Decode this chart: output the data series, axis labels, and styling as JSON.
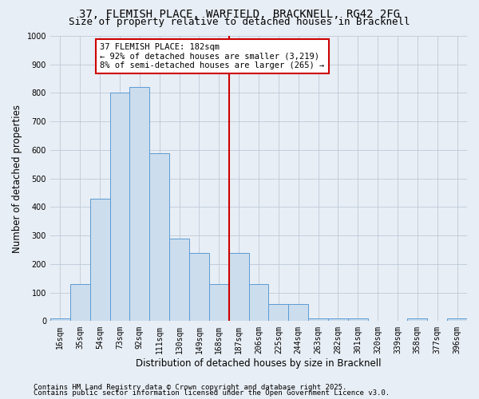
{
  "title_line1": "37, FLEMISH PLACE, WARFIELD, BRACKNELL, RG42 2FG",
  "title_line2": "Size of property relative to detached houses in Bracknell",
  "xlabel": "Distribution of detached houses by size in Bracknell",
  "ylabel": "Number of detached properties",
  "categories": [
    "16sqm",
    "35sqm",
    "54sqm",
    "73sqm",
    "92sqm",
    "111sqm",
    "130sqm",
    "149sqm",
    "168sqm",
    "187sqm",
    "206sqm",
    "225sqm",
    "244sqm",
    "263sqm",
    "282sqm",
    "301sqm",
    "320sqm",
    "339sqm",
    "358sqm",
    "377sqm",
    "396sqm"
  ],
  "values": [
    10,
    130,
    430,
    800,
    820,
    590,
    290,
    240,
    130,
    240,
    130,
    60,
    60,
    10,
    10,
    10,
    0,
    0,
    10,
    0,
    10
  ],
  "bar_color": "#ccdded",
  "bar_edge_color": "#5b9bd5",
  "grid_color": "#bdc9d8",
  "background_color": "#e8eef5",
  "annotation_text": "37 FLEMISH PLACE: 182sqm\n← 92% of detached houses are smaller (3,219)\n8% of semi-detached houses are larger (265) →",
  "vline_index": 9,
  "vline_color": "#cc0000",
  "annotation_box_color": "#ffffff",
  "annotation_box_edge": "#cc0000",
  "footer_line1": "Contains HM Land Registry data © Crown copyright and database right 2025.",
  "footer_line2": "Contains public sector information licensed under the Open Government Licence v3.0.",
  "ylim": [
    0,
    1000
  ],
  "yticks": [
    0,
    100,
    200,
    300,
    400,
    500,
    600,
    700,
    800,
    900,
    1000
  ],
  "title_fontsize": 10,
  "subtitle_fontsize": 9,
  "axis_label_fontsize": 8.5,
  "tick_fontsize": 7,
  "annotation_fontsize": 7.5,
  "footer_fontsize": 6.5
}
